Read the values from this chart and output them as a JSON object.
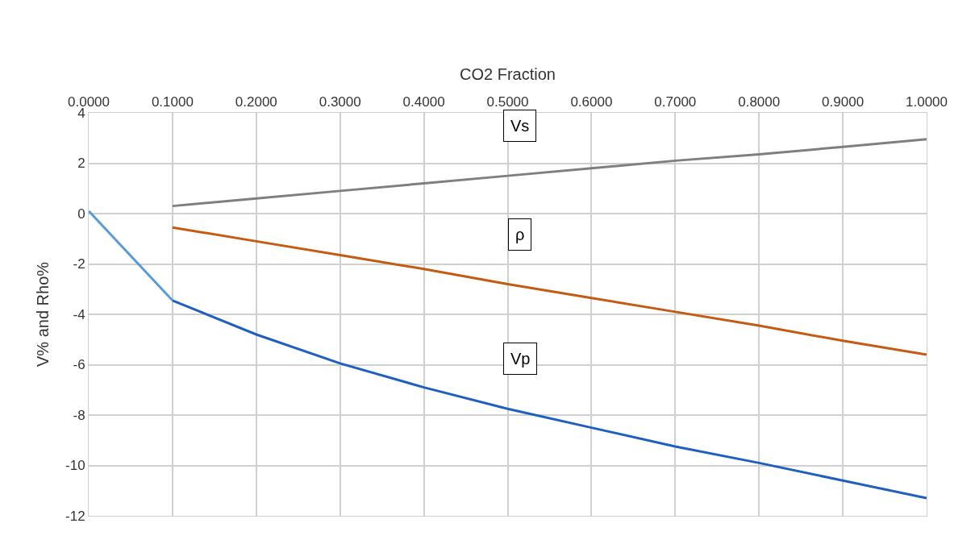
{
  "chart_data": {
    "type": "line",
    "xlabel": "CO2 Fraction",
    "ylabel": "V% and Rho%",
    "xlim": [
      0,
      1
    ],
    "xticks": [
      {
        "value": 0,
        "label": "0.0000"
      },
      {
        "value": 0.1,
        "label": "0.1000"
      },
      {
        "value": 0.2,
        "label": "0.2000"
      },
      {
        "value": 0.3,
        "label": "0.3000"
      },
      {
        "value": 0.4,
        "label": "0.4000"
      },
      {
        "value": 0.5,
        "label": "0.5000"
      },
      {
        "value": 0.6,
        "label": "0.6000"
      },
      {
        "value": 0.7,
        "label": "0.7000"
      },
      {
        "value": 0.8,
        "label": "0.8000"
      },
      {
        "value": 0.9,
        "label": "0.9000"
      },
      {
        "value": 1,
        "label": "1.0000"
      }
    ],
    "ylim": [
      -12,
      4
    ],
    "yticks": [
      -12,
      -10,
      -8,
      -6,
      -4,
      -2,
      0,
      2,
      4
    ],
    "grid": true,
    "legend": false,
    "marker": "none",
    "line_style": "solid",
    "series": [
      {
        "name": "Vs",
        "color": "#7f7f7f",
        "x": [
          0.1,
          0.2,
          0.3,
          0.4,
          0.5,
          0.6,
          0.7,
          0.8,
          0.9,
          1.0
        ],
        "values": [
          0.3,
          0.6,
          0.9,
          1.2,
          1.5,
          1.8,
          2.1,
          2.35,
          2.65,
          2.95
        ]
      },
      {
        "name": "ρ",
        "color": "#c55a11",
        "x": [
          0.1,
          0.2,
          0.3,
          0.4,
          0.5,
          0.6,
          0.7,
          0.8,
          0.9,
          1.0
        ],
        "values": [
          -0.55,
          -1.1,
          -1.65,
          -2.2,
          -2.8,
          -3.35,
          -3.9,
          -4.45,
          -5.05,
          -5.6
        ]
      },
      {
        "color": "#5b9bd5",
        "x": [
          0,
          0.1
        ],
        "values": [
          0.1,
          -3.45
        ]
      },
      {
        "name": "Vp",
        "color": "#1f5fbf",
        "x": [
          0.1,
          0.2,
          0.3,
          0.4,
          0.5,
          0.6,
          0.7,
          0.8,
          0.9,
          1.0
        ],
        "values": [
          -3.45,
          -4.8,
          -5.95,
          -6.9,
          -7.75,
          -8.5,
          -9.25,
          -9.9,
          -10.6,
          -11.3
        ]
      }
    ]
  }
}
